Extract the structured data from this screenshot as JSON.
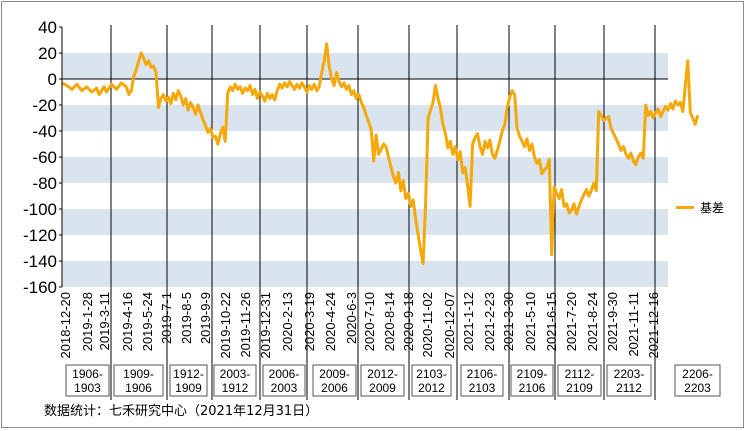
{
  "chart_data": {
    "type": "line",
    "title": "",
    "xlabel": "",
    "ylabel": "",
    "ylim": [
      -160,
      40
    ],
    "yticks": [
      40,
      20,
      0,
      -20,
      -40,
      -60,
      -80,
      -100,
      -120,
      -140,
      -160
    ],
    "grid": "alternating horizontal bands",
    "legend": {
      "position": "right",
      "entries": [
        "基差"
      ]
    },
    "x_tick_labels": [
      "2018-12-20",
      "2019-1-28",
      "2019-3-11",
      "2019-4-16",
      "2019-5-24",
      "2019-7-1",
      "2019-8-5",
      "2019-9-9",
      "2019-10-22",
      "2019-11-26",
      "2019-12-31",
      "2020-2-13",
      "2020-3-19",
      "2020-4-24",
      "2020-6-3",
      "2020-7-10",
      "2020-8-14",
      "2020-9-18",
      "2020-11-02",
      "2020-12-07",
      "2021-1-12",
      "2021-2-23",
      "2021-3-30",
      "2021-5-10",
      "2021-6-15",
      "2021-7-20",
      "2021-8-24",
      "2021-9-30",
      "2021-11-11",
      "2021-12-16"
    ],
    "contract_periods": [
      "1906-1903",
      "1909-1906",
      "1912-1909",
      "2003-1912",
      "2006-2003",
      "2009-2006",
      "2012-2009",
      "2103-2012",
      "2106-2103",
      "2109-2106",
      "2112-2109",
      "2203-2112",
      "2206-2203"
    ],
    "series": [
      {
        "name": "基差",
        "color": "#f5a80a",
        "values": [
          [
            0,
            -3
          ],
          [
            2,
            -5
          ],
          [
            4,
            -8
          ],
          [
            6,
            -4
          ],
          [
            8,
            -9
          ],
          [
            10,
            -6
          ],
          [
            12,
            -10
          ],
          [
            14,
            -7
          ],
          [
            15,
            -12
          ],
          [
            17,
            -6
          ],
          [
            18,
            -10
          ],
          [
            20,
            -4
          ],
          [
            22,
            -8
          ],
          [
            24,
            -3
          ],
          [
            26,
            -6
          ],
          [
            27,
            -12
          ],
          [
            28,
            -9
          ],
          [
            29,
            2
          ],
          [
            30,
            7
          ],
          [
            31,
            14
          ],
          [
            32,
            20
          ],
          [
            33,
            16
          ],
          [
            34,
            11
          ],
          [
            35,
            14
          ],
          [
            36,
            9
          ],
          [
            37,
            10
          ],
          [
            38,
            5
          ],
          [
            39,
            -22
          ],
          [
            40,
            -15
          ],
          [
            41,
            -12
          ],
          [
            42,
            -17
          ],
          [
            43,
            -14
          ],
          [
            44,
            -19
          ],
          [
            45,
            -11
          ],
          [
            46,
            -16
          ],
          [
            47,
            -9
          ],
          [
            48,
            -13
          ],
          [
            49,
            -20
          ],
          [
            50,
            -15
          ],
          [
            51,
            -24
          ],
          [
            52,
            -18
          ],
          [
            53,
            -22
          ],
          [
            54,
            -27
          ],
          [
            55,
            -20
          ],
          [
            56,
            -26
          ],
          [
            57,
            -31
          ],
          [
            58,
            -36
          ],
          [
            59,
            -41
          ],
          [
            60,
            -38
          ],
          [
            61,
            -45
          ],
          [
            62,
            -44
          ],
          [
            63,
            -50
          ],
          [
            64,
            -42
          ],
          [
            65,
            -37
          ],
          [
            66,
            -48
          ],
          [
            67,
            -11
          ],
          [
            68,
            -6
          ],
          [
            69,
            -9
          ],
          [
            70,
            -4
          ],
          [
            71,
            -8
          ],
          [
            72,
            -6
          ],
          [
            73,
            -11
          ],
          [
            74,
            -7
          ],
          [
            75,
            -9
          ],
          [
            76,
            -5
          ],
          [
            77,
            -12
          ],
          [
            78,
            -8
          ],
          [
            79,
            -15
          ],
          [
            80,
            -10
          ],
          [
            81,
            -13
          ],
          [
            82,
            -17
          ],
          [
            83,
            -11
          ],
          [
            84,
            -15
          ],
          [
            85,
            -12
          ],
          [
            86,
            -16
          ],
          [
            87,
            -9
          ],
          [
            88,
            -4
          ],
          [
            89,
            -7
          ],
          [
            90,
            -3
          ],
          [
            91,
            -6
          ],
          [
            92,
            -2
          ],
          [
            93,
            -5
          ],
          [
            94,
            -8
          ],
          [
            95,
            -4
          ],
          [
            96,
            -7
          ],
          [
            97,
            -3
          ],
          [
            98,
            -6
          ],
          [
            99,
            -10
          ],
          [
            100,
            -5
          ],
          [
            101,
            -8
          ],
          [
            102,
            -4
          ],
          [
            103,
            -9
          ],
          [
            104,
            -6
          ],
          [
            105,
            5
          ],
          [
            106,
            14
          ],
          [
            107,
            27
          ],
          [
            108,
            10
          ],
          [
            109,
            0
          ],
          [
            110,
            -5
          ],
          [
            111,
            5
          ],
          [
            112,
            -2
          ],
          [
            113,
            -6
          ],
          [
            114,
            -3
          ],
          [
            115,
            -8
          ],
          [
            116,
            -5
          ],
          [
            117,
            -12
          ],
          [
            118,
            -9
          ],
          [
            119,
            -15
          ],
          [
            120,
            -12
          ],
          [
            121,
            -18
          ],
          [
            122,
            -22
          ],
          [
            123,
            -28
          ],
          [
            124,
            -33
          ],
          [
            125,
            -39
          ],
          [
            126,
            -63
          ],
          [
            127,
            -43
          ],
          [
            128,
            -58
          ],
          [
            129,
            -54
          ],
          [
            130,
            -50
          ],
          [
            131,
            -52
          ],
          [
            132,
            -60
          ],
          [
            133,
            -68
          ],
          [
            134,
            -75
          ],
          [
            135,
            -80
          ],
          [
            136,
            -72
          ],
          [
            137,
            -86
          ],
          [
            138,
            -78
          ],
          [
            139,
            -92
          ],
          [
            140,
            -88
          ],
          [
            141,
            -98
          ],
          [
            142,
            -93
          ],
          [
            143,
            -108
          ],
          [
            144,
            -120
          ],
          [
            145,
            -132
          ],
          [
            146,
            -142
          ],
          [
            147,
            -96
          ],
          [
            148,
            -30
          ],
          [
            149,
            -24
          ],
          [
            150,
            -18
          ],
          [
            151,
            -5
          ],
          [
            152,
            -15
          ],
          [
            153,
            -22
          ],
          [
            154,
            -35
          ],
          [
            155,
            -42
          ],
          [
            156,
            -53
          ],
          [
            157,
            -48
          ],
          [
            158,
            -58
          ],
          [
            159,
            -52
          ],
          [
            160,
            -62
          ],
          [
            161,
            -56
          ],
          [
            162,
            -72
          ],
          [
            163,
            -68
          ],
          [
            164,
            -82
          ],
          [
            165,
            -98
          ],
          [
            166,
            -50
          ],
          [
            167,
            -45
          ],
          [
            168,
            -42
          ],
          [
            169,
            -52
          ],
          [
            170,
            -58
          ],
          [
            171,
            -48
          ],
          [
            172,
            -53
          ],
          [
            173,
            -47
          ],
          [
            174,
            -58
          ],
          [
            175,
            -61
          ],
          [
            176,
            -55
          ],
          [
            177,
            -48
          ],
          [
            178,
            -40
          ],
          [
            179,
            -35
          ],
          [
            180,
            -22
          ],
          [
            181,
            -14
          ],
          [
            182,
            -9
          ],
          [
            183,
            -12
          ],
          [
            184,
            -38
          ],
          [
            185,
            -44
          ],
          [
            186,
            -48
          ],
          [
            187,
            -52
          ],
          [
            188,
            -46
          ],
          [
            189,
            -55
          ],
          [
            190,
            -50
          ],
          [
            191,
            -60
          ],
          [
            192,
            -65
          ],
          [
            193,
            -62
          ],
          [
            194,
            -73
          ],
          [
            195,
            -70
          ],
          [
            196,
            -68
          ],
          [
            197,
            -62
          ],
          [
            198,
            -135
          ],
          [
            199,
            -83
          ],
          [
            200,
            -88
          ],
          [
            201,
            -92
          ],
          [
            202,
            -85
          ],
          [
            203,
            -98
          ],
          [
            204,
            -96
          ],
          [
            205,
            -103
          ],
          [
            206,
            -101
          ],
          [
            207,
            -96
          ],
          [
            208,
            -104
          ],
          [
            209,
            -98
          ],
          [
            210,
            -93
          ],
          [
            211,
            -89
          ],
          [
            212,
            -85
          ],
          [
            213,
            -90
          ],
          [
            214,
            -86
          ],
          [
            215,
            -80
          ],
          [
            216,
            -86
          ],
          [
            217,
            -25
          ],
          [
            218,
            -28
          ],
          [
            219,
            -32
          ],
          [
            220,
            -30
          ],
          [
            221,
            -29
          ],
          [
            222,
            -38
          ],
          [
            223,
            -42
          ],
          [
            224,
            -46
          ],
          [
            225,
            -50
          ],
          [
            226,
            -55
          ],
          [
            227,
            -52
          ],
          [
            228,
            -58
          ],
          [
            229,
            -61
          ],
          [
            230,
            -57
          ],
          [
            231,
            -63
          ],
          [
            232,
            -66
          ],
          [
            233,
            -60
          ],
          [
            234,
            -57
          ],
          [
            235,
            -61
          ],
          [
            236,
            -20
          ],
          [
            237,
            -28
          ],
          [
            238,
            -25
          ],
          [
            239,
            -30
          ],
          [
            240,
            -26
          ],
          [
            241,
            -23
          ],
          [
            242,
            -29
          ],
          [
            243,
            -25
          ],
          [
            244,
            -21
          ],
          [
            245,
            -24
          ],
          [
            246,
            -19
          ],
          [
            247,
            -23
          ],
          [
            248,
            -17
          ],
          [
            249,
            -20
          ],
          [
            250,
            -18
          ],
          [
            251,
            -25
          ],
          [
            252,
            -5
          ],
          [
            253,
            14
          ],
          [
            254,
            -26
          ],
          [
            255,
            -30
          ],
          [
            256,
            -35
          ],
          [
            257,
            -28
          ]
        ]
      }
    ]
  },
  "source_note": "数据统计：七禾研究中心（2021年12月31日）"
}
